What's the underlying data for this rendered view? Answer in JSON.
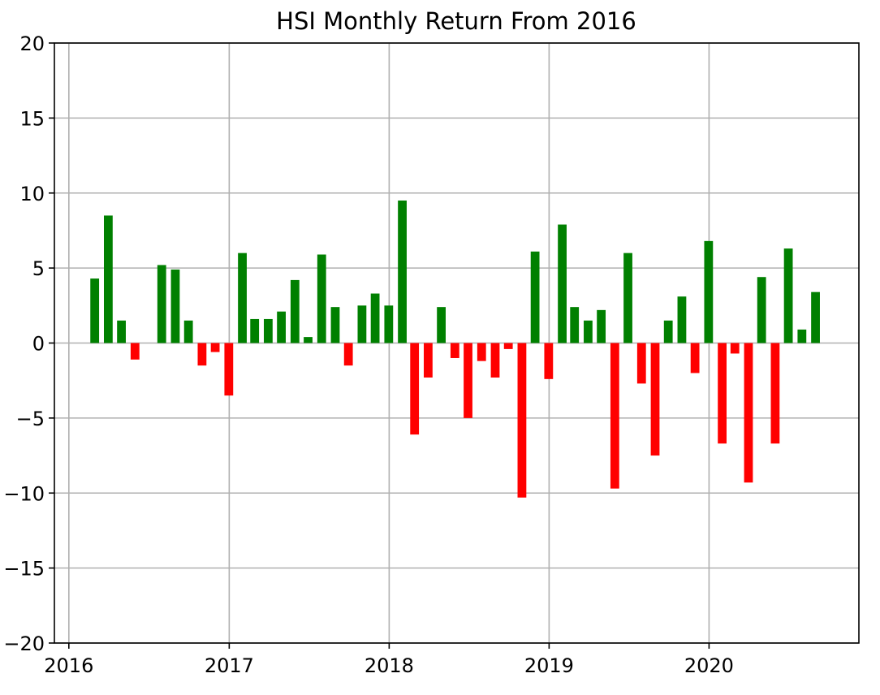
{
  "chart_data": {
    "type": "bar",
    "title": "HSI Monthly Return From 2016",
    "xlabel": "",
    "ylabel": "",
    "ylim": [
      -20,
      20
    ],
    "xlim": [
      "2015-11-29",
      "2020-12-08"
    ],
    "yticks": [
      "20",
      "15",
      "10",
      "5",
      "0",
      "−5",
      "−10",
      "−15",
      "−20"
    ],
    "ytick_values": [
      20,
      15,
      10,
      5,
      0,
      -5,
      -10,
      -15,
      -20
    ],
    "xticks": [
      "2016",
      "2017",
      "2018",
      "2019",
      "2020"
    ],
    "xtick_dates": [
      "2016-01-01",
      "2017-01-01",
      "2018-01-01",
      "2019-01-01",
      "2020-01-01"
    ],
    "grid": true,
    "colors": {
      "positive": "#008000",
      "negative": "#ff0000",
      "grid": "#b0b0b0",
      "axes": "#000000"
    },
    "series": [
      {
        "dates": [
          "2016-02-29",
          "2016-03-31",
          "2016-04-30",
          "2016-05-31",
          "2016-06-30",
          "2016-07-31",
          "2016-08-31",
          "2016-09-30",
          "2016-10-31",
          "2016-11-30",
          "2016-12-31",
          "2017-01-31",
          "2017-02-28",
          "2017-03-31",
          "2017-04-30",
          "2017-05-31",
          "2017-06-30",
          "2017-07-31",
          "2017-08-31",
          "2017-09-30",
          "2017-10-31",
          "2017-11-30",
          "2017-12-31",
          "2018-01-31",
          "2018-02-28",
          "2018-03-31",
          "2018-04-30",
          "2018-05-31",
          "2018-06-30",
          "2018-07-31",
          "2018-08-31",
          "2018-09-30",
          "2018-10-31",
          "2018-11-30",
          "2018-12-31",
          "2019-01-31",
          "2019-02-28",
          "2019-03-31",
          "2019-04-30",
          "2019-05-31",
          "2019-06-30",
          "2019-07-31",
          "2019-08-31",
          "2019-09-30",
          "2019-10-31",
          "2019-11-30",
          "2019-12-31",
          "2020-01-31",
          "2020-02-29",
          "2020-03-31",
          "2020-04-30",
          "2020-05-31",
          "2020-06-30",
          "2020-07-31",
          "2020-08-31",
          "2020-09-30"
        ],
        "values": [
          4.3,
          8.5,
          1.5,
          -1.1,
          0,
          5.2,
          4.9,
          1.5,
          -1.5,
          -0.6,
          -3.5,
          6.0,
          1.6,
          1.6,
          2.1,
          4.2,
          0.4,
          5.9,
          2.4,
          -1.5,
          2.5,
          3.3,
          2.5,
          9.5,
          -6.1,
          -2.3,
          2.4,
          -1.0,
          -5.0,
          -1.2,
          -2.3,
          -0.4,
          -10.3,
          6.1,
          -2.4,
          7.9,
          2.4,
          1.5,
          2.2,
          -9.7,
          6.0,
          -2.7,
          -7.5,
          1.5,
          3.1,
          -2.0,
          6.8,
          -6.7,
          -0.7,
          -9.3,
          4.4,
          -6.7,
          6.3,
          0.9,
          3.4,
          0
        ]
      }
    ]
  }
}
